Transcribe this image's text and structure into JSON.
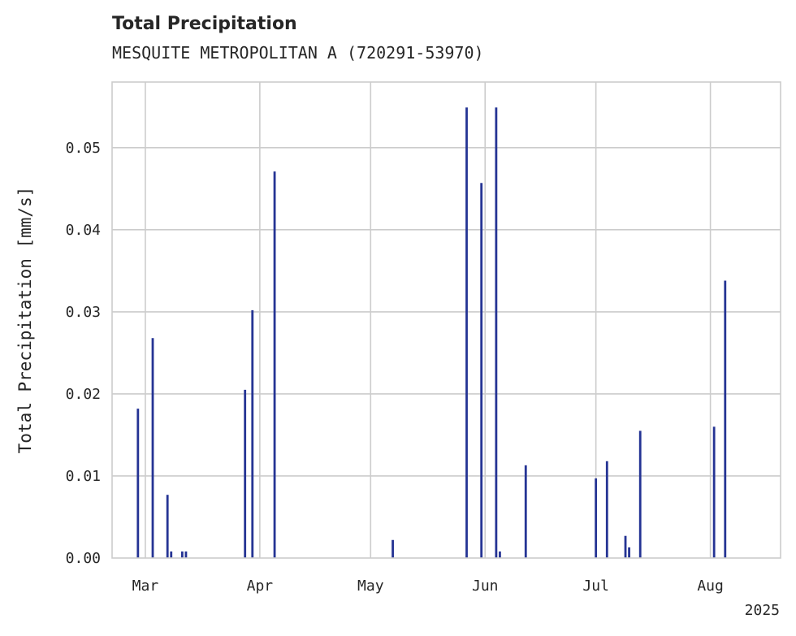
{
  "chart_data": {
    "type": "bar",
    "title": "Total Precipitation",
    "subtitle": "MESQUITE METROPOLITAN A (720291-53970)",
    "ylabel": "Total Precipitation [mm/s]",
    "xlabel": "",
    "year_label": "2025",
    "ylim": [
      0,
      0.058
    ],
    "xlim": [
      "2025-02-20",
      "2025-08-20"
    ],
    "grid": true,
    "legend": "none",
    "y_ticks": [
      {
        "value": 0.0,
        "label": "0.00"
      },
      {
        "value": 0.01,
        "label": "0.01"
      },
      {
        "value": 0.02,
        "label": "0.02"
      },
      {
        "value": 0.03,
        "label": "0.03"
      },
      {
        "value": 0.04,
        "label": "0.04"
      },
      {
        "value": 0.05,
        "label": "0.05"
      }
    ],
    "x_ticks": [
      {
        "date": "2025-03-01",
        "label": "Mar"
      },
      {
        "date": "2025-04-01",
        "label": "Apr"
      },
      {
        "date": "2025-05-01",
        "label": "May"
      },
      {
        "date": "2025-06-01",
        "label": "Jun"
      },
      {
        "date": "2025-07-01",
        "label": "Jul"
      },
      {
        "date": "2025-08-01",
        "label": "Aug"
      }
    ],
    "series": [
      {
        "color": "#253494",
        "points": [
          {
            "x": "2025-02-27",
            "y": 0.0182
          },
          {
            "x": "2025-03-03",
            "y": 0.0268
          },
          {
            "x": "2025-03-07",
            "y": 0.0077
          },
          {
            "x": "2025-03-08",
            "y": 0.0008
          },
          {
            "x": "2025-03-11",
            "y": 0.0008
          },
          {
            "x": "2025-03-12",
            "y": 0.0008
          },
          {
            "x": "2025-03-28",
            "y": 0.0205
          },
          {
            "x": "2025-03-30",
            "y": 0.0302
          },
          {
            "x": "2025-04-05",
            "y": 0.0471
          },
          {
            "x": "2025-05-07",
            "y": 0.0022
          },
          {
            "x": "2025-05-27",
            "y": 0.0549
          },
          {
            "x": "2025-05-31",
            "y": 0.0457
          },
          {
            "x": "2025-06-04",
            "y": 0.0549
          },
          {
            "x": "2025-06-05",
            "y": 0.0008
          },
          {
            "x": "2025-06-12",
            "y": 0.0113
          },
          {
            "x": "2025-07-01",
            "y": 0.0097
          },
          {
            "x": "2025-07-04",
            "y": 0.0118
          },
          {
            "x": "2025-07-09",
            "y": 0.0027
          },
          {
            "x": "2025-07-10",
            "y": 0.0013
          },
          {
            "x": "2025-07-13",
            "y": 0.0155
          },
          {
            "x": "2025-08-02",
            "y": 0.016
          },
          {
            "x": "2025-08-05",
            "y": 0.0338
          }
        ]
      }
    ]
  }
}
